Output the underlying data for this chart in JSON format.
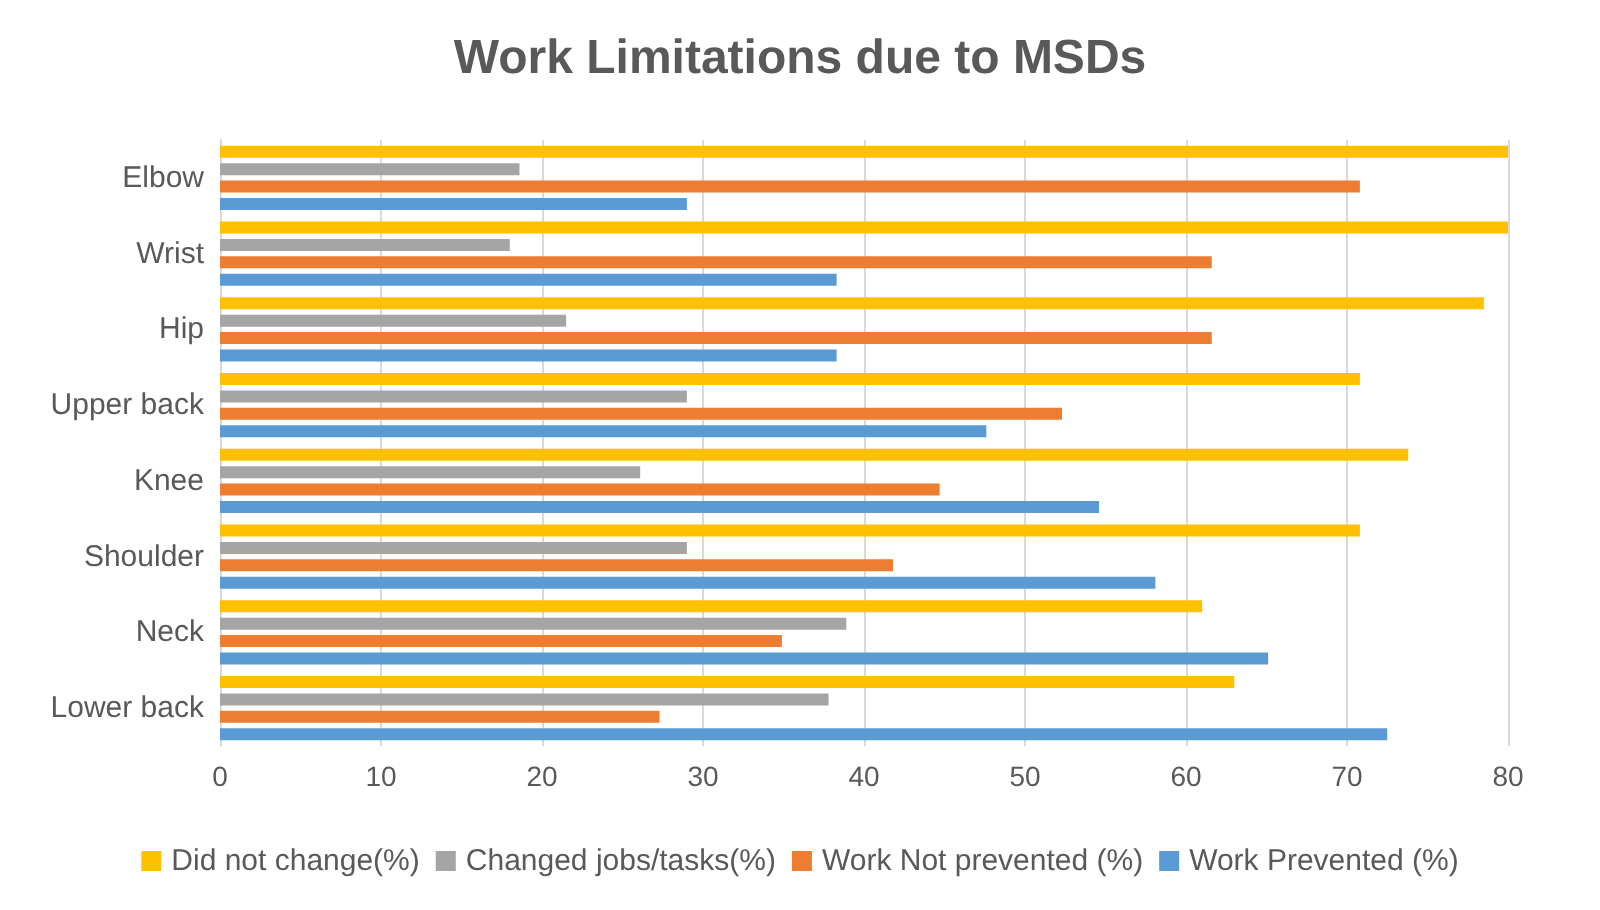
{
  "chart_data": {
    "type": "bar",
    "orientation": "horizontal",
    "title": "Work Limitations due to MSDs",
    "categories": [
      "Elbow",
      "Wrist",
      "Hip",
      "Upper back",
      "Knee",
      "Shoulder",
      "Neck",
      "Lower back"
    ],
    "series": [
      {
        "name": "Did not change(%)",
        "color": "#ffc000",
        "values": [
          80,
          80,
          78.5,
          70.8,
          73.8,
          70.8,
          61,
          63
        ]
      },
      {
        "name": "Changed jobs/tasks(%)",
        "color": "#a5a5a5",
        "values": [
          18.6,
          18,
          21.5,
          29,
          26.1,
          29,
          38.9,
          37.8
        ]
      },
      {
        "name": "Work Not prevented (%)",
        "color": "#ed7d31",
        "values": [
          70.8,
          61.6,
          61.6,
          52.3,
          44.7,
          41.8,
          34.9,
          27.3
        ]
      },
      {
        "name": "Work Prevented (%)",
        "color": "#5b9bd5",
        "values": [
          29,
          38.3,
          38.3,
          47.6,
          54.6,
          58.1,
          65.1,
          72.5
        ]
      }
    ],
    "xlim": [
      0,
      80
    ],
    "xticks": [
      0,
      10,
      20,
      30,
      40,
      50,
      60,
      70,
      80
    ],
    "grid": "x",
    "legend": "bottom"
  }
}
